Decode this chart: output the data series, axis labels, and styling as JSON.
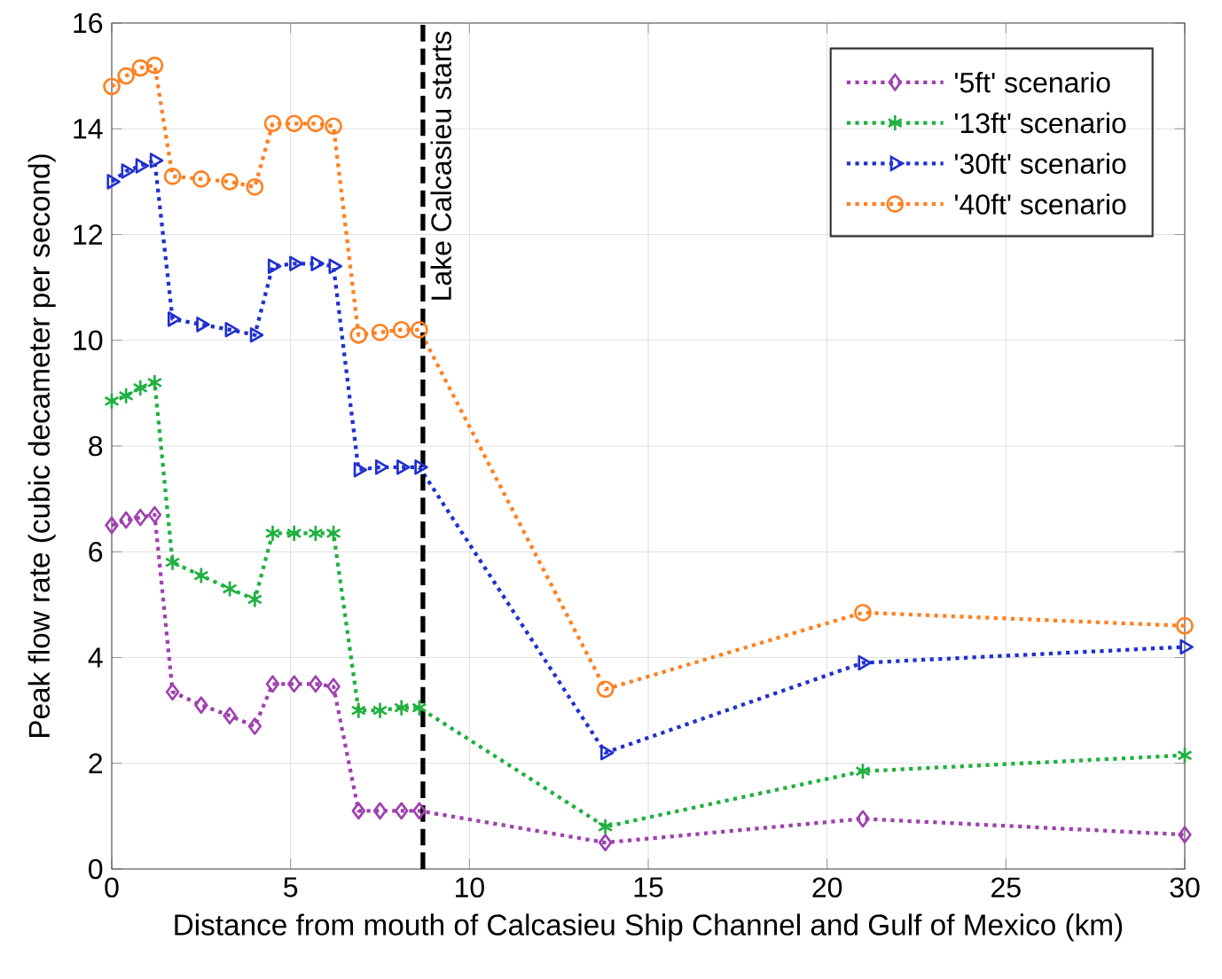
{
  "chart_data": {
    "type": "line",
    "xlabel": "Distance from mouth of Calcasieu Ship Channel and Gulf of Mexico (km)",
    "ylabel": "Peak flow rate (cubic decameter per second)",
    "x": [
      0,
      0.4,
      0.8,
      1.2,
      1.7,
      2.5,
      3.3,
      4.0,
      4.5,
      5.1,
      5.7,
      6.2,
      6.9,
      7.5,
      8.1,
      8.6,
      13.8,
      21,
      30
    ],
    "series": [
      {
        "name": "'5ft' scenario",
        "color": "#a040b0",
        "marker": "diamond",
        "values": [
          6.5,
          6.6,
          6.65,
          6.7,
          3.35,
          3.1,
          2.9,
          2.7,
          3.5,
          3.5,
          3.5,
          3.45,
          1.1,
          1.1,
          1.1,
          1.1,
          0.5,
          0.95,
          0.65
        ]
      },
      {
        "name": "'13ft' scenario",
        "color": "#20b040",
        "marker": "cross",
        "values": [
          8.85,
          8.95,
          9.1,
          9.2,
          5.8,
          5.55,
          5.3,
          5.1,
          6.35,
          6.35,
          6.35,
          6.35,
          3.0,
          3.0,
          3.05,
          3.05,
          0.8,
          1.85,
          2.15
        ]
      },
      {
        "name": "'30ft' scenario",
        "color": "#2030d0",
        "marker": "triangle",
        "values": [
          13.0,
          13.2,
          13.3,
          13.4,
          10.4,
          10.3,
          10.2,
          10.1,
          11.4,
          11.45,
          11.45,
          11.4,
          7.55,
          7.6,
          7.6,
          7.6,
          2.2,
          3.9,
          4.2
        ]
      },
      {
        "name": "'40ft' scenario",
        "color": "#ff8020",
        "marker": "circle",
        "values": [
          14.8,
          15.0,
          15.15,
          15.2,
          13.1,
          13.05,
          13.0,
          12.9,
          14.1,
          14.1,
          14.1,
          14.05,
          10.1,
          10.15,
          10.2,
          10.2,
          3.4,
          4.85,
          4.6
        ]
      }
    ],
    "xlim": [
      0,
      30
    ],
    "xticks": [
      0,
      5,
      10,
      15,
      20,
      25,
      30
    ],
    "ylim": [
      0,
      16
    ],
    "yticks": [
      0,
      2,
      4,
      6,
      8,
      10,
      12,
      14,
      16
    ],
    "ref_lines": [
      {
        "axis": "x",
        "value": 8.7,
        "label": "Lake Calcasieu starts",
        "color": "#000000",
        "line_style": "dashed"
      }
    ],
    "grid": true,
    "legend": "top right",
    "line_style": "dotted"
  }
}
